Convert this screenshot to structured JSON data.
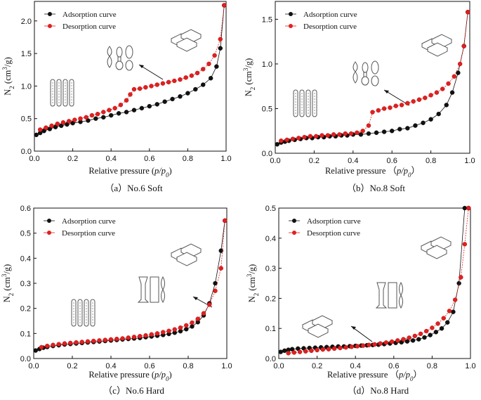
{
  "chart_data": [
    {
      "type": "scatter",
      "caption": "（a）No.6 Soft",
      "xlabel": "Relative pressure (p/p0)",
      "ylabel": "N2 (cm3/g)",
      "xlim": [
        0,
        1.0
      ],
      "ylim": [
        0,
        2.3
      ],
      "xticks": [
        0.0,
        0.2,
        0.4,
        0.6,
        0.8,
        1.0
      ],
      "yticks": [
        0.0,
        0.5,
        1.0,
        1.5,
        2.0
      ],
      "legend_position": "top-left",
      "series": [
        {
          "name": "Adsorption curve",
          "color": "#111111",
          "x": [
            0.01,
            0.03,
            0.05,
            0.08,
            0.11,
            0.14,
            0.17,
            0.2,
            0.24,
            0.28,
            0.32,
            0.36,
            0.4,
            0.44,
            0.48,
            0.52,
            0.56,
            0.6,
            0.64,
            0.68,
            0.72,
            0.76,
            0.8,
            0.84,
            0.88,
            0.92,
            0.95,
            0.97,
            0.99
          ],
          "y": [
            0.25,
            0.28,
            0.31,
            0.34,
            0.37,
            0.39,
            0.41,
            0.43,
            0.45,
            0.47,
            0.5,
            0.52,
            0.55,
            0.58,
            0.6,
            0.63,
            0.66,
            0.69,
            0.72,
            0.76,
            0.8,
            0.84,
            0.89,
            0.95,
            1.02,
            1.12,
            1.3,
            1.58,
            2.24
          ]
        },
        {
          "name": "Desorption curve",
          "color": "#e02020",
          "x": [
            0.03,
            0.06,
            0.09,
            0.12,
            0.15,
            0.18,
            0.21,
            0.24,
            0.27,
            0.3,
            0.33,
            0.36,
            0.39,
            0.42,
            0.45,
            0.48,
            0.5,
            0.52,
            0.55,
            0.58,
            0.61,
            0.64,
            0.67,
            0.7,
            0.73,
            0.76,
            0.79,
            0.82,
            0.85,
            0.88,
            0.91,
            0.94,
            0.97,
            0.99
          ],
          "y": [
            0.33,
            0.36,
            0.39,
            0.42,
            0.44,
            0.46,
            0.48,
            0.5,
            0.52,
            0.55,
            0.57,
            0.6,
            0.63,
            0.66,
            0.71,
            0.78,
            0.87,
            0.95,
            0.96,
            0.98,
            1.0,
            1.02,
            1.04,
            1.06,
            1.08,
            1.1,
            1.13,
            1.16,
            1.2,
            1.26,
            1.34,
            1.47,
            1.72,
            2.24
          ]
        }
      ]
    },
    {
      "type": "scatter",
      "caption": "（b）No.8 Soft",
      "xlabel": "Relative pressure （p/p0）",
      "ylabel": "N2 (cm3/g)",
      "xlim": [
        0,
        1.0
      ],
      "ylim": [
        0,
        1.7
      ],
      "xticks": [
        0.0,
        0.2,
        0.4,
        0.6,
        0.8,
        1.0
      ],
      "yticks": [
        0.0,
        0.5,
        1.0,
        1.5
      ],
      "legend_position": "top-left",
      "series": [
        {
          "name": "Adsorption curve",
          "color": "#111111",
          "x": [
            0.01,
            0.03,
            0.05,
            0.07,
            0.1,
            0.13,
            0.16,
            0.19,
            0.22,
            0.25,
            0.28,
            0.31,
            0.34,
            0.37,
            0.4,
            0.44,
            0.48,
            0.52,
            0.56,
            0.6,
            0.64,
            0.68,
            0.72,
            0.76,
            0.8,
            0.84,
            0.88,
            0.91,
            0.94,
            0.97,
            0.99
          ],
          "y": [
            0.1,
            0.12,
            0.13,
            0.14,
            0.15,
            0.16,
            0.17,
            0.17,
            0.18,
            0.18,
            0.19,
            0.19,
            0.2,
            0.2,
            0.21,
            0.21,
            0.22,
            0.23,
            0.24,
            0.25,
            0.27,
            0.28,
            0.31,
            0.34,
            0.38,
            0.44,
            0.54,
            0.68,
            0.9,
            1.2,
            1.58
          ]
        },
        {
          "name": "Desorption curve",
          "color": "#e02020",
          "x": [
            0.03,
            0.06,
            0.09,
            0.12,
            0.15,
            0.18,
            0.21,
            0.24,
            0.27,
            0.3,
            0.33,
            0.36,
            0.39,
            0.42,
            0.45,
            0.48,
            0.5,
            0.53,
            0.56,
            0.59,
            0.62,
            0.65,
            0.68,
            0.71,
            0.74,
            0.77,
            0.8,
            0.83,
            0.86,
            0.89,
            0.92,
            0.95,
            0.97,
            0.99
          ],
          "y": [
            0.14,
            0.15,
            0.16,
            0.17,
            0.18,
            0.19,
            0.19,
            0.2,
            0.2,
            0.21,
            0.21,
            0.22,
            0.22,
            0.23,
            0.25,
            0.31,
            0.46,
            0.48,
            0.5,
            0.51,
            0.53,
            0.54,
            0.56,
            0.58,
            0.6,
            0.62,
            0.65,
            0.68,
            0.72,
            0.78,
            0.86,
            1.0,
            1.2,
            1.58
          ]
        }
      ]
    },
    {
      "type": "scatter",
      "caption": "（c）No.6 Hard",
      "xlabel": "Relative pressure (p/p0)",
      "ylabel": "N2 (cm3/g)",
      "xlim": [
        0,
        1.0
      ],
      "ylim": [
        0,
        0.6
      ],
      "xticks": [
        0.0,
        0.2,
        0.4,
        0.6,
        0.8,
        1.0
      ],
      "yticks": [
        0.0,
        0.1,
        0.2,
        0.3,
        0.4,
        0.5,
        0.6
      ],
      "legend_position": "top-left",
      "series": [
        {
          "name": "Adsorption curve",
          "color": "#111111",
          "x": [
            0.01,
            0.03,
            0.05,
            0.07,
            0.1,
            0.13,
            0.16,
            0.19,
            0.22,
            0.25,
            0.28,
            0.31,
            0.34,
            0.37,
            0.4,
            0.43,
            0.46,
            0.49,
            0.52,
            0.55,
            0.58,
            0.61,
            0.64,
            0.67,
            0.7,
            0.73,
            0.76,
            0.79,
            0.82,
            0.85,
            0.88,
            0.91,
            0.94,
            0.97,
            0.99
          ],
          "y": [
            0.032,
            0.038,
            0.043,
            0.046,
            0.05,
            0.053,
            0.056,
            0.058,
            0.06,
            0.062,
            0.064,
            0.066,
            0.068,
            0.07,
            0.072,
            0.074,
            0.076,
            0.078,
            0.08,
            0.082,
            0.085,
            0.088,
            0.091,
            0.094,
            0.098,
            0.103,
            0.109,
            0.117,
            0.128,
            0.145,
            0.172,
            0.22,
            0.3,
            0.43,
            0.55
          ]
        },
        {
          "name": "Desorption curve",
          "color": "#e02020",
          "x": [
            0.04,
            0.07,
            0.1,
            0.13,
            0.16,
            0.19,
            0.22,
            0.25,
            0.28,
            0.31,
            0.34,
            0.37,
            0.4,
            0.43,
            0.46,
            0.49,
            0.52,
            0.55,
            0.58,
            0.61,
            0.64,
            0.67,
            0.7,
            0.73,
            0.76,
            0.79,
            0.82,
            0.85,
            0.88,
            0.91,
            0.94,
            0.97,
            0.99
          ],
          "y": [
            0.045,
            0.05,
            0.054,
            0.057,
            0.06,
            0.062,
            0.064,
            0.066,
            0.068,
            0.07,
            0.072,
            0.074,
            0.076,
            0.078,
            0.08,
            0.083,
            0.086,
            0.089,
            0.092,
            0.096,
            0.1,
            0.105,
            0.11,
            0.116,
            0.123,
            0.132,
            0.143,
            0.158,
            0.18,
            0.215,
            0.27,
            0.36,
            0.55
          ]
        }
      ]
    },
    {
      "type": "scatter",
      "caption": "（d）No.8 Hard",
      "xlabel": "Relative pressure （p/p0）",
      "ylabel": "N2 (cm3/g)",
      "xlim": [
        0,
        1.0
      ],
      "ylim": [
        0,
        0.5
      ],
      "xticks": [
        0.0,
        0.2,
        0.4,
        0.6,
        0.8,
        1.0
      ],
      "yticks": [
        0.0,
        0.1,
        0.2,
        0.3,
        0.4,
        0.5
      ],
      "legend_position": "top-left",
      "series": [
        {
          "name": "Adsorption curve",
          "color": "#111111",
          "x": [
            0.01,
            0.03,
            0.05,
            0.07,
            0.1,
            0.13,
            0.16,
            0.19,
            0.22,
            0.25,
            0.28,
            0.31,
            0.34,
            0.37,
            0.4,
            0.43,
            0.46,
            0.49,
            0.52,
            0.55,
            0.58,
            0.61,
            0.64,
            0.67,
            0.7,
            0.73,
            0.76,
            0.79,
            0.82,
            0.85,
            0.88,
            0.91,
            0.94,
            0.97,
            0.99
          ],
          "y": [
            0.022,
            0.026,
            0.029,
            0.031,
            0.033,
            0.034,
            0.035,
            0.036,
            0.037,
            0.038,
            0.039,
            0.04,
            0.04,
            0.041,
            0.042,
            0.043,
            0.044,
            0.045,
            0.046,
            0.048,
            0.05,
            0.052,
            0.054,
            0.057,
            0.06,
            0.064,
            0.07,
            0.078,
            0.088,
            0.1,
            0.12,
            0.155,
            0.25,
            0.5,
            0.5
          ]
        },
        {
          "name": "Desorption curve",
          "color": "#e02020",
          "x": [
            0.05,
            0.08,
            0.11,
            0.14,
            0.17,
            0.2,
            0.23,
            0.26,
            0.29,
            0.32,
            0.35,
            0.38,
            0.41,
            0.44,
            0.47,
            0.5,
            0.53,
            0.56,
            0.59,
            0.62,
            0.65,
            0.68,
            0.71,
            0.74,
            0.77,
            0.8,
            0.83,
            0.86,
            0.89,
            0.92,
            0.95,
            0.97,
            0.99
          ],
          "y": [
            0.018,
            0.02,
            0.022,
            0.024,
            0.026,
            0.028,
            0.03,
            0.031,
            0.033,
            0.035,
            0.037,
            0.039,
            0.041,
            0.043,
            0.045,
            0.047,
            0.05,
            0.053,
            0.056,
            0.06,
            0.064,
            0.069,
            0.075,
            0.082,
            0.091,
            0.102,
            0.116,
            0.134,
            0.158,
            0.195,
            0.27,
            0.38,
            0.5
          ]
        }
      ]
    }
  ]
}
